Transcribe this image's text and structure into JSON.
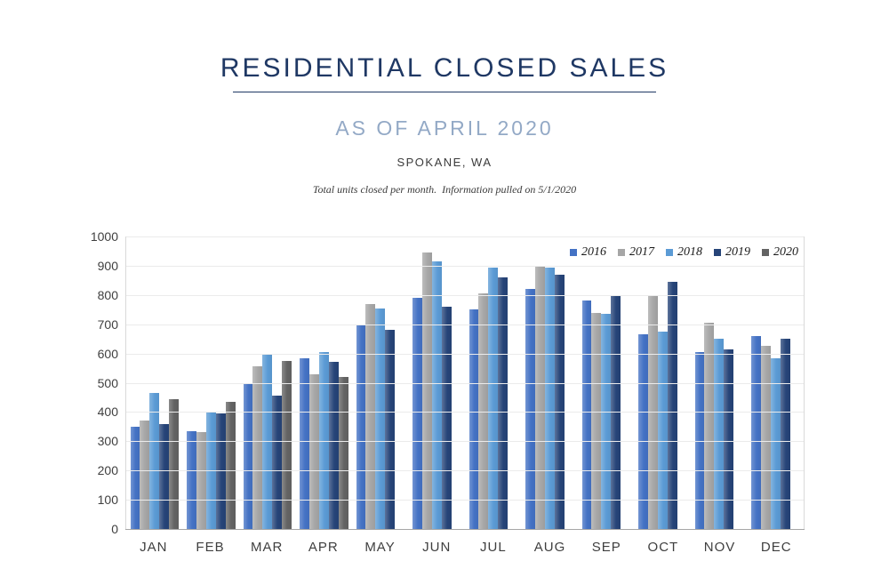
{
  "header": {
    "title": "RESIDENTIAL CLOSED SALES",
    "subtitle": "AS OF APRIL 2020",
    "location": "SPOKANE, WA",
    "note": "Total units closed per month.  Information pulled on 5/1/2020"
  },
  "colors": {
    "title_navy": "#1F3864",
    "subtitle_blue": "#93A9C6",
    "body_text": "#3B3B3B",
    "gridline": "#EBEBEB",
    "axis_line": "#A6A6A6"
  },
  "chart_data": {
    "type": "bar",
    "title": "RESIDENTIAL CLOSED SALES",
    "subtitle": "AS OF APRIL 2020",
    "xlabel": "",
    "ylabel": "",
    "ylim": [
      0,
      1000
    ],
    "ytick_step": 100,
    "grid": true,
    "legend_position": "top-right",
    "categories": [
      "JAN",
      "FEB",
      "MAR",
      "APR",
      "MAY",
      "JUN",
      "JUL",
      "AUG",
      "SEP",
      "OCT",
      "NOV",
      "DEC"
    ],
    "series": [
      {
        "name": "2016",
        "color": "#4472C4",
        "values": [
          350,
          335,
          495,
          585,
          700,
          790,
          750,
          820,
          780,
          665,
          605,
          660
        ]
      },
      {
        "name": "2017",
        "color": "#A6A6A6",
        "values": [
          370,
          330,
          555,
          530,
          770,
          945,
          805,
          900,
          740,
          800,
          705,
          625
        ]
      },
      {
        "name": "2018",
        "color": "#5B9BD5",
        "values": [
          465,
          400,
          600,
          605,
          755,
          915,
          895,
          895,
          735,
          675,
          650,
          585
        ]
      },
      {
        "name": "2019",
        "color": "#264478",
        "values": [
          360,
          395,
          455,
          570,
          680,
          760,
          860,
          870,
          800,
          845,
          615,
          650
        ]
      },
      {
        "name": "2020",
        "color": "#636363",
        "values": [
          445,
          435,
          575,
          520,
          null,
          null,
          null,
          null,
          null,
          null,
          null,
          null
        ]
      }
    ]
  }
}
